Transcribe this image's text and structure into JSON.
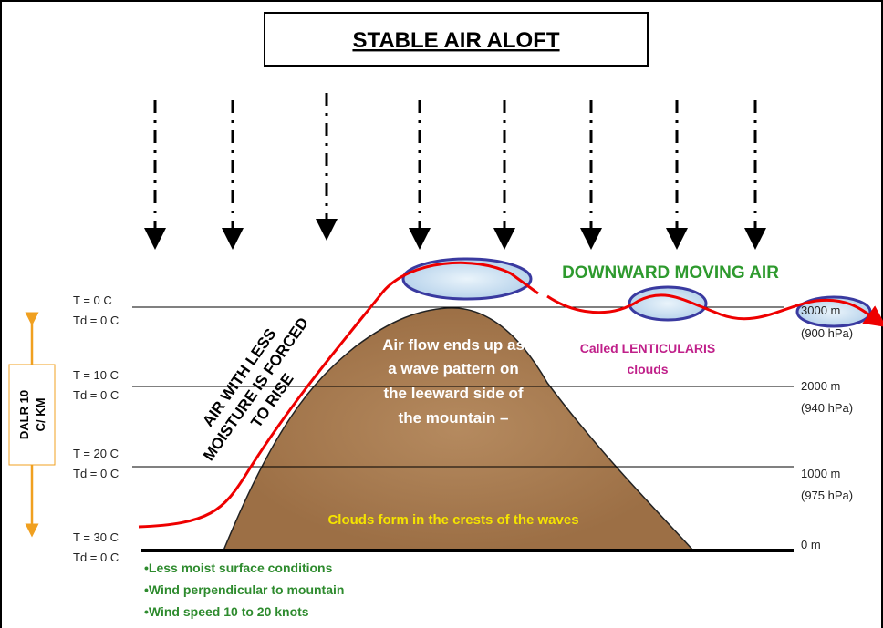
{
  "title": "STABLE AIR ALOFT",
  "levels": [
    {
      "temp": "T = 0 C",
      "dew": "Td = 0 C",
      "altitude": "3000 m",
      "pressure": "(900 hPa)"
    },
    {
      "temp": "T = 10 C",
      "dew": "Td = 0 C",
      "altitude": "2000 m",
      "pressure": "(940 hPa)"
    },
    {
      "temp": "T = 20 C",
      "dew": "Td = 0 C",
      "altitude": "1000 m",
      "pressure": "(975 hPa)"
    },
    {
      "temp": "T = 30 C",
      "dew": "Td = 0 C",
      "altitude": "0 m"
    }
  ],
  "dalr": [
    "DALR  10",
    "C/ KM"
  ],
  "rise_label": [
    "AIR WITH LESS",
    "MOISTURE IS  FORCED",
    "TO RISE"
  ],
  "downward_label": "DOWNWARD MOVING AIR",
  "lenticularis_label": [
    "Called LENTICULARIS",
    "clouds"
  ],
  "mountain_text": [
    "Air flow ends up as",
    "a wave pattern on",
    "the leeward side of",
    "the mountain –"
  ],
  "crest_label": "Clouds form in the crests of the waves",
  "conditions": [
    "•Less moist surface conditions",
    "•Wind perpendicular to mountain",
    "•Wind speed 10 to 20 knots"
  ]
}
